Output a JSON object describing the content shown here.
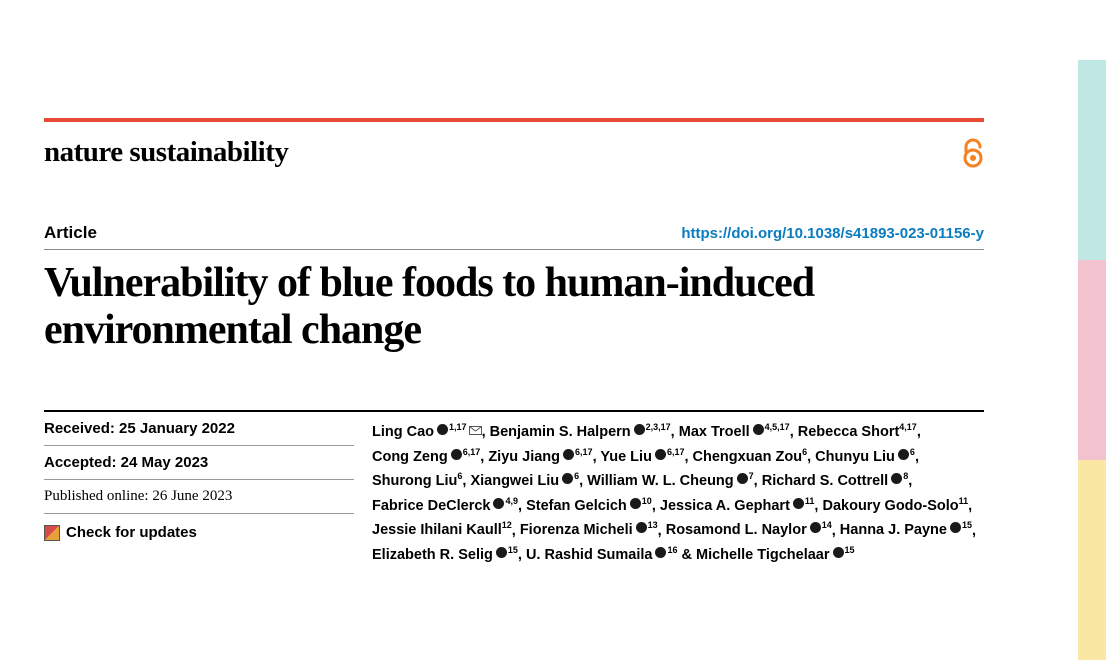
{
  "brand": "nature sustainability",
  "article_type": "Article",
  "doi": "https://doi.org/10.1038/s41893-023-01156-y",
  "title": "Vulnerability of blue foods to human-induced environmental change",
  "meta": {
    "received_label": "Received: 25 January 2022",
    "accepted_label": "Accepted: 24 May 2023",
    "published_label": "Published online: 26 June 2023",
    "check_updates": "Check for updates"
  },
  "colors": {
    "accent_rule": "#e84b33",
    "link": "#0a7cc0",
    "oa_orange": "#f58220",
    "tab1": "#bfe7e4",
    "tab2": "#f2c3ce",
    "tab3": "#f9e7a3"
  },
  "oa_icon": {
    "name": "open-access-icon",
    "color": "#f58220"
  },
  "authors": [
    {
      "name": "Ling Cao",
      "orcid": true,
      "aff": "1,17",
      "corresponding": true
    },
    {
      "name": "Benjamin S. Halpern",
      "orcid": true,
      "aff": "2,3,17"
    },
    {
      "name": "Max Troell",
      "orcid": true,
      "aff": "4,5,17"
    },
    {
      "name": "Rebecca Short",
      "orcid": false,
      "aff": "4,17"
    },
    {
      "name": "Cong Zeng",
      "orcid": true,
      "aff": "6,17"
    },
    {
      "name": "Ziyu Jiang",
      "orcid": true,
      "aff": "6,17"
    },
    {
      "name": "Yue Liu",
      "orcid": true,
      "aff": "6,17"
    },
    {
      "name": "Chengxuan Zou",
      "orcid": false,
      "aff": "6"
    },
    {
      "name": "Chunyu Liu",
      "orcid": true,
      "aff": "6"
    },
    {
      "name": "Shurong Liu",
      "orcid": false,
      "aff": "6"
    },
    {
      "name": "Xiangwei Liu",
      "orcid": true,
      "aff": "6"
    },
    {
      "name": "William W. L. Cheung",
      "orcid": true,
      "aff": "7"
    },
    {
      "name": "Richard S. Cottrell",
      "orcid": true,
      "aff": "8"
    },
    {
      "name": "Fabrice DeClerck",
      "orcid": true,
      "aff": "4,9"
    },
    {
      "name": "Stefan Gelcich",
      "orcid": true,
      "aff": "10"
    },
    {
      "name": "Jessica A. Gephart",
      "orcid": true,
      "aff": "11"
    },
    {
      "name": "Dakoury Godo-Solo",
      "orcid": false,
      "aff": "11"
    },
    {
      "name": "Jessie Ihilani Kaull",
      "orcid": false,
      "aff": "12"
    },
    {
      "name": "Fiorenza Micheli",
      "orcid": true,
      "aff": "13"
    },
    {
      "name": "Rosamond L. Naylor",
      "orcid": true,
      "aff": "14"
    },
    {
      "name": "Hanna J. Payne",
      "orcid": true,
      "aff": "15"
    },
    {
      "name": "Elizabeth R. Selig",
      "orcid": true,
      "aff": "15"
    },
    {
      "name": "U. Rashid Sumaila",
      "orcid": true,
      "aff": "16"
    },
    {
      "name": "Michelle Tigchelaar",
      "orcid": true,
      "aff": "15"
    }
  ]
}
